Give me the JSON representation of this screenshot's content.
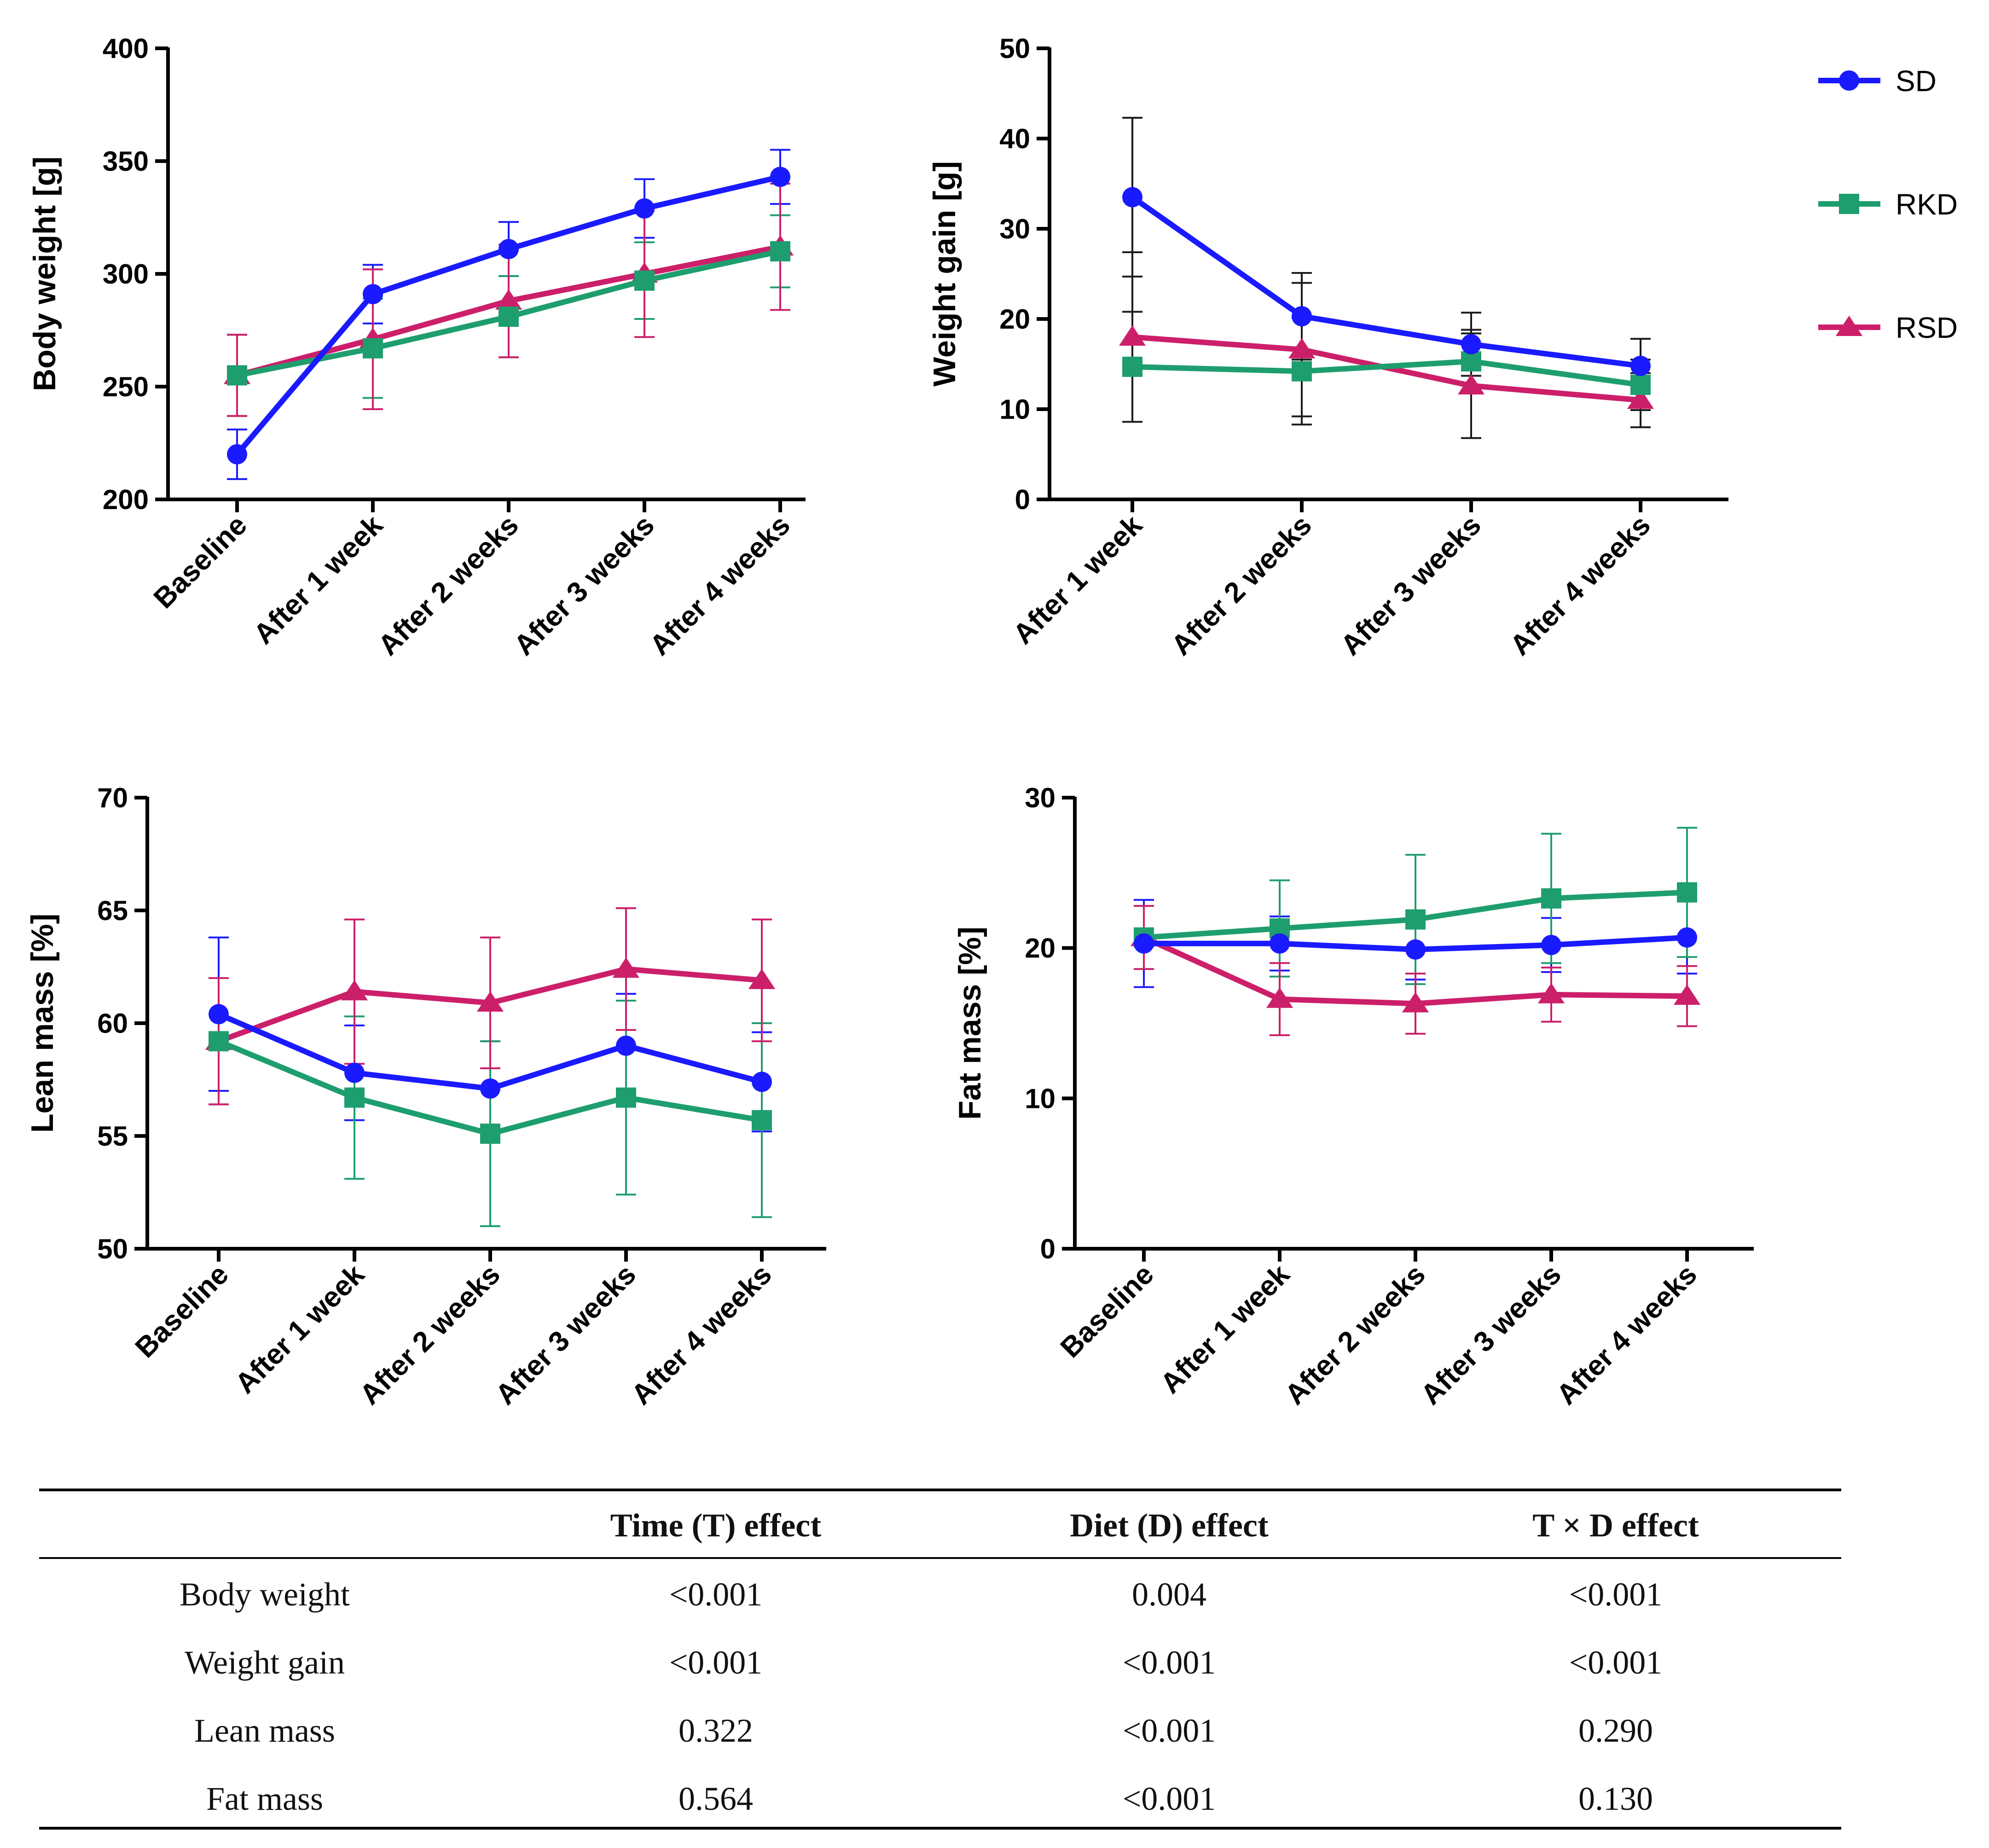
{
  "legend": [
    {
      "name": "SD",
      "color": "#1a1aff",
      "marker": "circle"
    },
    {
      "name": "RKD",
      "color": "#1e9e6e",
      "marker": "square"
    },
    {
      "name": "RSD",
      "color": "#cc1f6a",
      "marker": "triangle"
    }
  ],
  "chart_data": [
    {
      "type": "line",
      "ylabel": "Body weight [g]",
      "ylim": [
        200,
        400
      ],
      "yticks": [
        "200",
        "250",
        "300",
        "350",
        "400"
      ],
      "categories": [
        "Baseline",
        "After 1 week",
        "After 2 weeks",
        "After 3 weeks",
        "After 4 weeks"
      ],
      "series": [
        {
          "name": "SD",
          "values": [
            220,
            291,
            311,
            329,
            343
          ],
          "errors": [
            11,
            13,
            12,
            13,
            12
          ]
        },
        {
          "name": "RKD",
          "values": [
            255,
            267,
            281,
            297,
            310
          ],
          "errors": [
            18,
            22,
            18,
            17,
            16
          ]
        },
        {
          "name": "RSD",
          "values": [
            255,
            271,
            288,
            300,
            312
          ],
          "errors": [
            18,
            31,
            25,
            28,
            28
          ]
        }
      ]
    },
    {
      "type": "line",
      "ylabel": "Weight gain [g]",
      "ylim": [
        0,
        50
      ],
      "yticks": [
        "0",
        "10",
        "20",
        "30",
        "40",
        "50"
      ],
      "categories": [
        "After 1 week",
        "After 2 weeks",
        "After 3 weeks",
        "After 4 weeks"
      ],
      "series": [
        {
          "name": "SD",
          "values": [
            33.5,
            20.3,
            17.2,
            14.8
          ],
          "errors": [
            8.8,
            4.8,
            3.5,
            3.0
          ]
        },
        {
          "name": "RKD",
          "values": [
            14.7,
            14.2,
            15.3,
            12.7
          ],
          "errors": [
            6.1,
            5.9,
            3.5,
            2.8
          ]
        },
        {
          "name": "RSD",
          "values": [
            18.0,
            16.6,
            12.6,
            11.0
          ],
          "errors": [
            9.4,
            7.4,
            5.8,
            3.0
          ]
        }
      ]
    },
    {
      "type": "line",
      "ylabel": "Lean mass [%]",
      "ylim": [
        50,
        70
      ],
      "yticks": [
        "50",
        "55",
        "60",
        "65",
        "70"
      ],
      "categories": [
        "Baseline",
        "After 1 week",
        "After 2 weeks",
        "After 3 weeks",
        "After 4 weeks"
      ],
      "series": [
        {
          "name": "SD",
          "values": [
            60.4,
            57.8,
            57.1,
            59.0,
            57.4
          ],
          "errors": [
            3.4,
            2.1,
            2.1,
            2.3,
            2.2
          ]
        },
        {
          "name": "RKD",
          "values": [
            59.2,
            56.7,
            55.1,
            56.7,
            55.7
          ],
          "errors": [
            2.8,
            3.6,
            4.1,
            4.3,
            4.3
          ]
        },
        {
          "name": "RSD",
          "values": [
            59.2,
            61.4,
            60.9,
            62.4,
            61.9
          ],
          "errors": [
            2.8,
            3.2,
            2.9,
            2.7,
            2.7
          ]
        }
      ]
    },
    {
      "type": "line",
      "ylabel": "Fat mass [%]",
      "ylim": [
        0,
        30
      ],
      "yticks": [
        "0",
        "10",
        "20",
        "30"
      ],
      "categories": [
        "Baseline",
        "After 1 week",
        "After 2 weeks",
        "After 3 weeks",
        "After 4 weeks"
      ],
      "series": [
        {
          "name": "SD",
          "values": [
            20.3,
            20.3,
            19.9,
            20.2,
            20.7
          ],
          "errors": [
            2.9,
            1.8,
            2.0,
            1.8,
            2.4
          ]
        },
        {
          "name": "RKD",
          "values": [
            20.7,
            21.3,
            21.9,
            23.3,
            23.7
          ],
          "errors": [
            2.1,
            3.2,
            4.3,
            4.3,
            4.3
          ]
        },
        {
          "name": "RSD",
          "values": [
            20.7,
            16.6,
            16.3,
            16.9,
            16.8
          ],
          "errors": [
            2.1,
            2.4,
            2.0,
            1.8,
            2.0
          ]
        }
      ]
    }
  ],
  "table": {
    "headers": [
      "",
      "Time (T) effect",
      "Diet (D) effect",
      "T × D effect"
    ],
    "rows": [
      [
        "Body weight",
        "<0.001",
        "0.004",
        "<0.001"
      ],
      [
        "Weight gain",
        "<0.001",
        "<0.001",
        "<0.001"
      ],
      [
        "Lean mass",
        "0.322",
        "<0.001",
        "0.290"
      ],
      [
        "Fat mass",
        "0.564",
        "<0.001",
        "0.130"
      ]
    ]
  }
}
